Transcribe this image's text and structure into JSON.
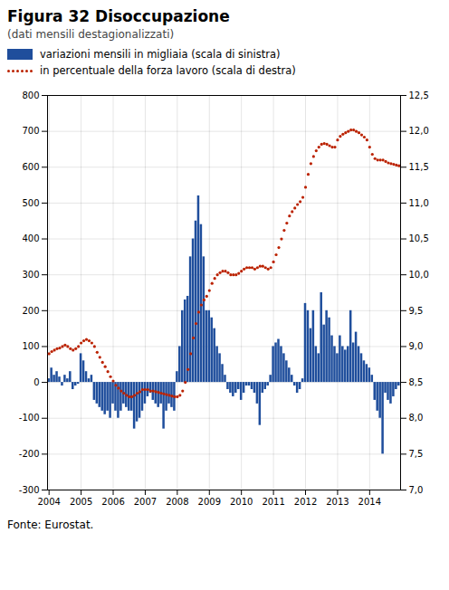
{
  "chart_data": {
    "type": "bar",
    "title": "Figura 32  Disoccupazione",
    "subtitle": "(dati mensili destagionalizzati)",
    "caption": "Fonte: Eurostat.",
    "legend": "top",
    "grid": true,
    "categories": [
      "2004",
      null,
      null,
      null,
      null,
      null,
      null,
      null,
      null,
      null,
      null,
      null,
      "2005",
      null,
      null,
      null,
      null,
      null,
      null,
      null,
      null,
      null,
      null,
      null,
      "2006",
      null,
      null,
      null,
      null,
      null,
      null,
      null,
      null,
      null,
      null,
      null,
      "2007",
      null,
      null,
      null,
      null,
      null,
      null,
      null,
      null,
      null,
      null,
      null,
      "2008",
      null,
      null,
      null,
      null,
      null,
      null,
      null,
      null,
      null,
      null,
      null,
      "2009",
      null,
      null,
      null,
      null,
      null,
      null,
      null,
      null,
      null,
      null,
      null,
      "2010",
      null,
      null,
      null,
      null,
      null,
      null,
      null,
      null,
      null,
      null,
      null,
      "2011",
      null,
      null,
      null,
      null,
      null,
      null,
      null,
      null,
      null,
      null,
      null,
      "2012",
      null,
      null,
      null,
      null,
      null,
      null,
      null,
      null,
      null,
      null,
      null,
      "2013",
      null,
      null,
      null,
      null,
      null,
      null,
      null,
      null,
      null,
      null,
      null,
      "2014",
      null,
      null,
      null,
      null,
      null,
      null,
      null,
      null,
      null,
      null,
      null
    ],
    "series": [
      {
        "name": "variazioni mensili in migliaia (scala di sinistra)",
        "type": "bar",
        "color": "#1f4e9c",
        "values": [
          10,
          40,
          20,
          30,
          15,
          -10,
          20,
          10,
          30,
          -20,
          -10,
          -5,
          80,
          60,
          30,
          10,
          20,
          -50,
          -60,
          -70,
          -80,
          -90,
          -80,
          -100,
          -60,
          -80,
          -100,
          -80,
          -60,
          -70,
          -80,
          -80,
          -130,
          -110,
          -100,
          -80,
          -60,
          -40,
          -30,
          -50,
          -60,
          -70,
          -60,
          -130,
          -80,
          -60,
          -70,
          -80,
          30,
          100,
          200,
          230,
          240,
          350,
          400,
          450,
          520,
          440,
          350,
          200,
          200,
          180,
          150,
          100,
          80,
          50,
          20,
          -20,
          -30,
          -40,
          -30,
          -20,
          -50,
          -30,
          -10,
          -10,
          -20,
          -30,
          -60,
          -120,
          -30,
          -20,
          -10,
          20,
          100,
          110,
          120,
          100,
          80,
          60,
          40,
          20,
          -10,
          -30,
          -20,
          10,
          220,
          200,
          150,
          200,
          100,
          80,
          250,
          160,
          200,
          180,
          130,
          100,
          80,
          130,
          100,
          90,
          100,
          200,
          110,
          140,
          100,
          80,
          60,
          50,
          40,
          20,
          -50,
          -80,
          -100,
          -200,
          -30,
          -50,
          -60,
          -40,
          -20,
          -10
        ]
      },
      {
        "name": "in percentuale della forza lavoro (scala di destra)",
        "type": "scatter",
        "marker": "dot",
        "axis": "y2",
        "color": "#bb2200",
        "values": [
          8.9,
          8.93,
          8.95,
          8.97,
          8.98,
          9.0,
          9.02,
          9.0,
          8.97,
          8.95,
          8.97,
          9.0,
          9.05,
          9.08,
          9.1,
          9.08,
          9.05,
          9.0,
          8.92,
          8.85,
          8.78,
          8.72,
          8.65,
          8.58,
          8.52,
          8.46,
          8.42,
          8.38,
          8.35,
          8.32,
          8.3,
          8.3,
          8.32,
          8.35,
          8.37,
          8.4,
          8.4,
          8.4,
          8.38,
          8.38,
          8.37,
          8.36,
          8.35,
          8.34,
          8.33,
          8.32,
          8.31,
          8.3,
          8.3,
          8.32,
          8.38,
          8.5,
          8.68,
          8.9,
          9.12,
          9.32,
          9.48,
          9.58,
          9.65,
          9.7,
          9.78,
          9.88,
          9.95,
          10.0,
          10.03,
          10.05,
          10.05,
          10.03,
          10.0,
          10.0,
          10.0,
          10.02,
          10.05,
          10.08,
          10.1,
          10.1,
          10.1,
          10.08,
          10.1,
          10.12,
          10.12,
          10.1,
          10.08,
          10.1,
          10.18,
          10.28,
          10.38,
          10.5,
          10.62,
          10.72,
          10.82,
          10.88,
          10.93,
          10.98,
          11.02,
          11.08,
          11.22,
          11.4,
          11.55,
          11.65,
          11.73,
          11.78,
          11.82,
          11.83,
          11.82,
          11.8,
          11.78,
          11.78,
          11.88,
          11.93,
          11.96,
          11.98,
          12.0,
          12.02,
          12.02,
          12.0,
          11.98,
          11.95,
          11.92,
          11.88,
          11.78,
          11.68,
          11.62,
          11.6,
          11.6,
          11.6,
          11.58,
          11.56,
          11.55,
          11.54,
          11.53,
          11.52
        ]
      }
    ],
    "ylim": [
      -300,
      800
    ],
    "yticks": [
      -300,
      -200,
      -100,
      0,
      100,
      200,
      300,
      400,
      500,
      600,
      700,
      800
    ],
    "y2lim": [
      7.0,
      12.5
    ],
    "y2ticks": [
      {
        "value": 7.0,
        "label": "7,0"
      },
      {
        "value": 7.5,
        "label": "7,5"
      },
      {
        "value": 8.0,
        "label": "8,0"
      },
      {
        "value": 8.5,
        "label": "8,5"
      },
      {
        "value": 9.0,
        "label": "9,0"
      },
      {
        "value": 9.5,
        "label": "9,5"
      },
      {
        "value": 10.0,
        "label": "10,0"
      },
      {
        "value": 10.5,
        "label": "10,5"
      },
      {
        "value": 11.0,
        "label": "11,0"
      },
      {
        "value": 11.5,
        "label": "11,5"
      },
      {
        "value": 12.0,
        "label": "12,0"
      },
      {
        "value": 12.5,
        "label": "12,5"
      }
    ]
  }
}
